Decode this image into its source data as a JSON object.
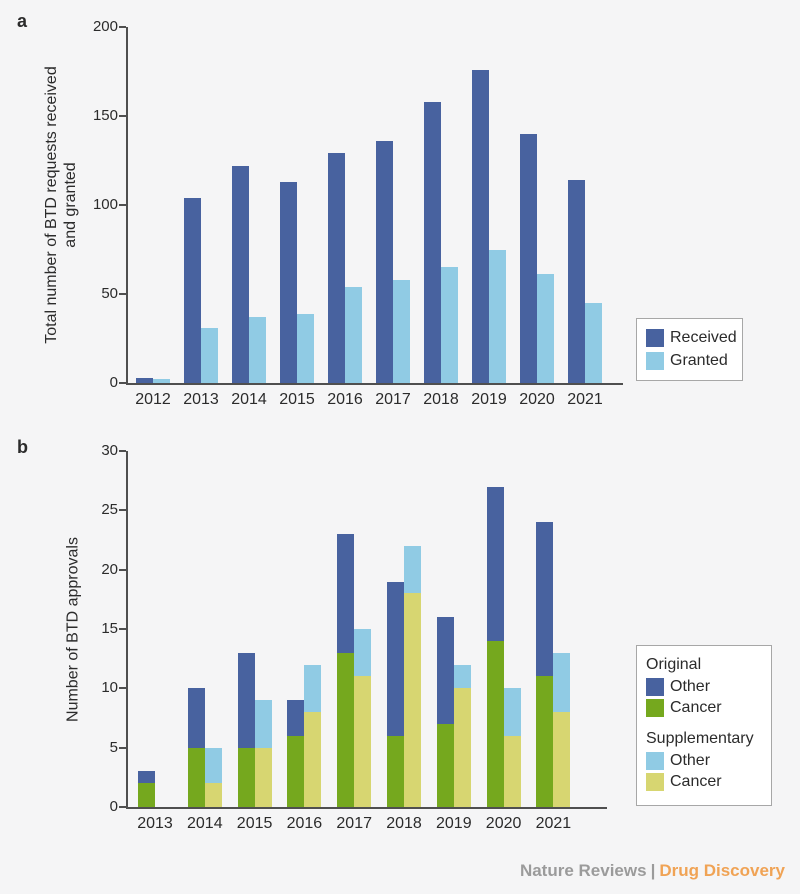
{
  "panels": {
    "a": {
      "label": "a"
    },
    "b": {
      "label": "b"
    }
  },
  "footer": {
    "journal": "Nature Reviews",
    "separator": "|",
    "publication": "Drug Discovery"
  },
  "colors": {
    "background": "#f5f5f6",
    "axis": "#4f4f4f",
    "dark_blue": "#48629f",
    "light_blue": "#90cbe4",
    "green": "#75a81e",
    "yellow_green": "#d7d671",
    "legend_border": "#a7a7a7",
    "footer_gray": "#9b9b9b",
    "footer_orange": "#f0a355"
  },
  "chart_data": [
    {
      "id": "a",
      "type": "bar",
      "title": "",
      "ylabel": "Total number of BTD requests received and granted",
      "ylabel_lines": [
        "Total number of BTD requests received",
        "and granted"
      ],
      "xlabel": "",
      "categories": [
        "2012",
        "2013",
        "2014",
        "2015",
        "2016",
        "2017",
        "2018",
        "2019",
        "2020",
        "2021"
      ],
      "series": [
        {
          "name": "Received",
          "color": "#48629f",
          "values": [
            3,
            104,
            122,
            113,
            129,
            136,
            158,
            176,
            140,
            114
          ]
        },
        {
          "name": "Granted",
          "color": "#90cbe4",
          "values": [
            2,
            31,
            37,
            39,
            54,
            58,
            65,
            75,
            61,
            45
          ]
        }
      ],
      "ylim": [
        0,
        200
      ],
      "yticks": [
        0,
        50,
        100,
        150,
        200
      ],
      "grid": false,
      "legend_position": "right"
    },
    {
      "id": "b",
      "type": "stacked-bar",
      "title": "",
      "ylabel": "Number of BTD approvals",
      "xlabel": "",
      "categories": [
        "2013",
        "2014",
        "2015",
        "2016",
        "2017",
        "2018",
        "2019",
        "2020",
        "2021"
      ],
      "columns": [
        {
          "name": "Original",
          "segments": [
            {
              "name": "Cancer",
              "color": "#75a81e",
              "values": [
                2,
                5,
                5,
                6,
                13,
                6,
                7,
                14,
                11
              ]
            },
            {
              "name": "Other",
              "color": "#48629f",
              "values": [
                1,
                5,
                8,
                3,
                10,
                13,
                9,
                13,
                13
              ]
            }
          ]
        },
        {
          "name": "Supplementary",
          "segments": [
            {
              "name": "Cancer",
              "color": "#d7d671",
              "values": [
                0,
                2,
                5,
                8,
                11,
                18,
                10,
                6,
                8
              ]
            },
            {
              "name": "Other",
              "color": "#90cbe4",
              "values": [
                0,
                3,
                4,
                4,
                4,
                4,
                2,
                4,
                5
              ]
            }
          ]
        }
      ],
      "ylim": [
        0,
        30
      ],
      "yticks": [
        0,
        5,
        10,
        15,
        20,
        25,
        30
      ],
      "grid": false,
      "legend_sections": [
        {
          "header": "Original",
          "items": [
            {
              "label": "Other",
              "color": "#48629f"
            },
            {
              "label": "Cancer",
              "color": "#75a81e"
            }
          ]
        },
        {
          "header": "Supplementary",
          "items": [
            {
              "label": "Other",
              "color": "#90cbe4"
            },
            {
              "label": "Cancer",
              "color": "#d7d671"
            }
          ]
        }
      ],
      "legend_position": "right"
    }
  ]
}
